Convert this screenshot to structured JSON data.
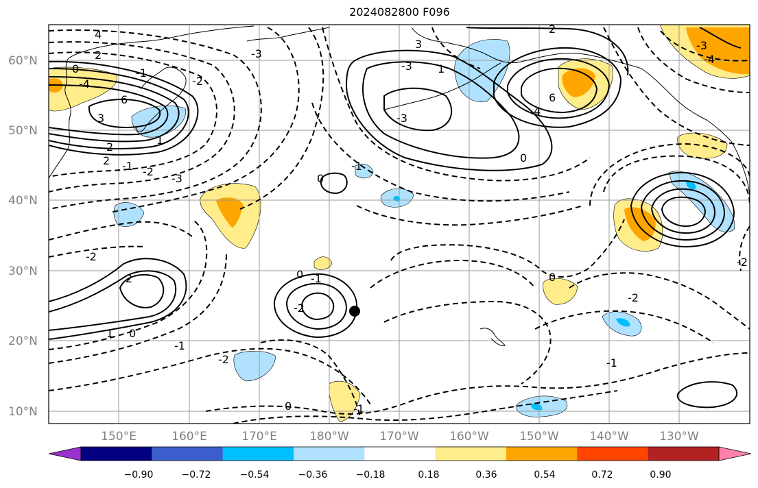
{
  "title": "2024082800 F096",
  "map": {
    "projection": "cylindrical",
    "lon_range": [
      140,
      -120
    ],
    "lat_range": [
      8,
      65
    ],
    "lat_labels": [
      "10°N",
      "20°N",
      "30°N",
      "40°N",
      "50°N",
      "60°N"
    ],
    "lon_labels": [
      "150°E",
      "160°E",
      "170°E",
      "180°W",
      "170°W",
      "160°W",
      "150°W",
      "140°W",
      "130°W"
    ],
    "contour_labels": [
      "4",
      "2",
      "0",
      "-1",
      "-2",
      "-3",
      "-4",
      "6",
      "3",
      "2",
      "-1",
      "1",
      "-2",
      "2",
      "-3",
      "-2",
      "0",
      "-1",
      "2",
      "1",
      "0",
      "0",
      "-1",
      "-1",
      "-2",
      "-2",
      "0",
      "-1",
      "-3",
      "-3",
      "3",
      "0",
      "2",
      "1",
      "6",
      "4",
      "0",
      "-3",
      "-2",
      "-4",
      "-2",
      "-1"
    ],
    "marker": {
      "type": "storm-center",
      "lon": -177.5,
      "lat": 24
    }
  },
  "colorbar": {
    "ticks": [
      "−0.90",
      "−0.72",
      "−0.54",
      "−0.36",
      "−0.18",
      "0.18",
      "0.36",
      "0.54",
      "0.72",
      "0.90"
    ],
    "colors": [
      "#9932CC",
      "#000080",
      "#3A5FCD",
      "#00BFFF",
      "#B0E2FF",
      "#FFFFFF",
      "#FFEC8B",
      "#FFA500",
      "#FF4500",
      "#B22222",
      "#FF82AB"
    ]
  }
}
